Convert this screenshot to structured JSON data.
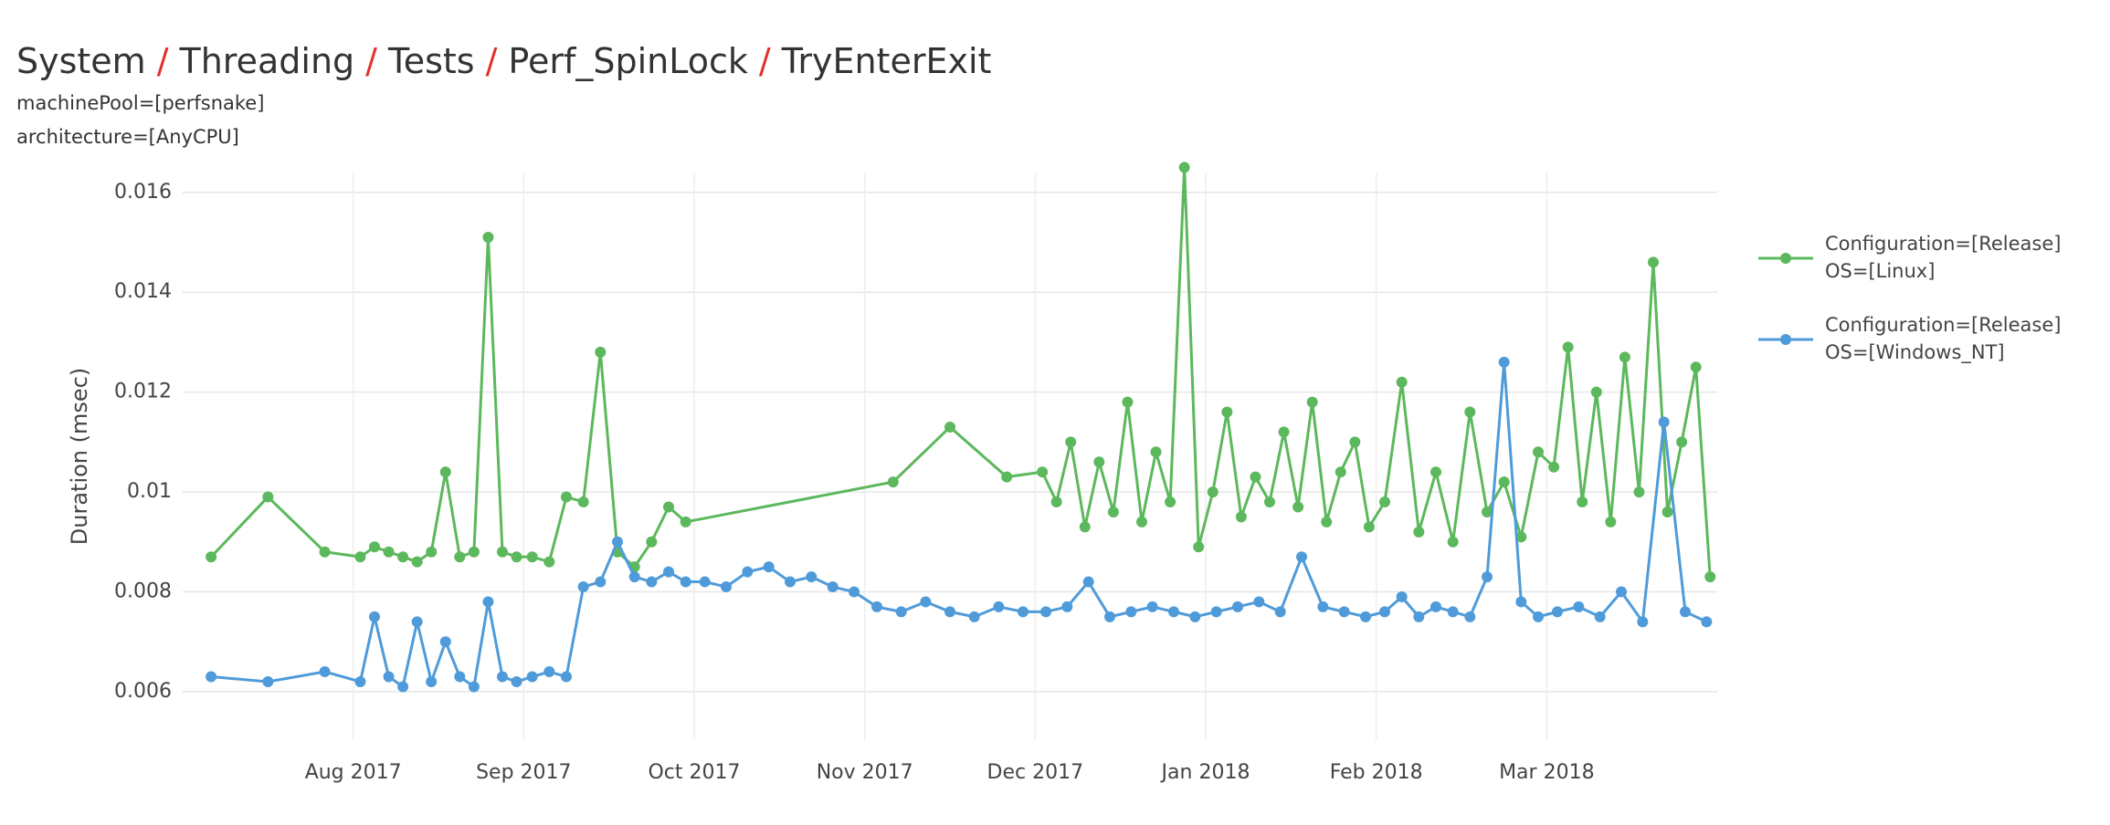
{
  "chart_data": {
    "type": "line",
    "title_parts": [
      "System",
      "Threading",
      "Tests",
      "Perf_SpinLock",
      "TryEnterExit"
    ],
    "title_separator": "/",
    "subtitle_lines": [
      "machinePool=[perfsnake]",
      "architecture=[AnyCPU]"
    ],
    "y_label": "Duration (msec)",
    "xlim": [
      "2017-07",
      "2018-04"
    ],
    "xticks": [
      {
        "value": "2017-08",
        "label": "Aug 2017"
      },
      {
        "value": "2017-09",
        "label": "Sep 2017"
      },
      {
        "value": "2017-10",
        "label": "Oct 2017"
      },
      {
        "value": "2017-11",
        "label": "Nov 2017"
      },
      {
        "value": "2017-12",
        "label": "Dec 2017"
      },
      {
        "value": "2018-01",
        "label": "Jan 2018"
      },
      {
        "value": "2018-02",
        "label": "Feb 2018"
      },
      {
        "value": "2018-03",
        "label": "Mar 2018"
      }
    ],
    "ylim": [
      0.00503,
      0.01638
    ],
    "yticks": [
      0.006,
      0.008,
      0.01,
      0.012,
      0.014,
      0.016
    ],
    "grid": true,
    "legend": "right",
    "series": [
      {
        "name": [
          "Configuration=[Release]",
          "OS=[Linux]"
        ],
        "color": "#5cb85c",
        "x": [
          "2017-07",
          "2017-07",
          "2017-07",
          "2017-08",
          "2017-08",
          "2017-08",
          "2017-08",
          "2017-08",
          "2017-08",
          "2017-08",
          "2017-08",
          "2017-08",
          "2017-08",
          "2017-08",
          "2017-08",
          "2017-09",
          "2017-09",
          "2017-09",
          "2017-09",
          "2017-09",
          "2017-09",
          "2017-09",
          "2017-09",
          "2017-09",
          "2017-09",
          "2017-11",
          "2017-11",
          "2017-11",
          "2017-12",
          "2017-12",
          "2017-12",
          "2017-12",
          "2017-12",
          "2017-12",
          "2017-12",
          "2017-12",
          "2017-12",
          "2017-12",
          "2017-12",
          "2017-12",
          "2018-01",
          "2018-01",
          "2018-01",
          "2018-01",
          "2018-01",
          "2018-01",
          "2018-01",
          "2018-01",
          "2018-01",
          "2018-01",
          "2018-01",
          "2018-01",
          "2018-02",
          "2018-02",
          "2018-02",
          "2018-02",
          "2018-02",
          "2018-02",
          "2018-02",
          "2018-02",
          "2018-02",
          "2018-02",
          "2018-03",
          "2018-03",
          "2018-03",
          "2018-03",
          "2018-03",
          "2018-03",
          "2018-03",
          "2018-03",
          "2018-03",
          "2018-03",
          "2018-03",
          "2018-03"
        ],
        "values": [
          0.0087,
          0.0099,
          0.0088,
          0.0087,
          0.0089,
          0.0088,
          0.0087,
          0.0086,
          0.0088,
          0.0104,
          0.0087,
          0.0088,
          0.0151,
          0.0088,
          0.0087,
          0.0087,
          0.0086,
          0.0099,
          0.0098,
          0.0128,
          0.0088,
          0.0085,
          0.009,
          0.0097,
          0.0094,
          0.0102,
          0.0113,
          0.0103,
          0.0104,
          0.0098,
          0.011,
          0.0093,
          0.0106,
          0.0096,
          0.0118,
          0.0094,
          0.0108,
          0.0098,
          0.0165,
          0.0089,
          0.01,
          0.0116,
          0.0095,
          0.0103,
          0.0098,
          0.0112,
          0.0097,
          0.0118,
          0.0094,
          0.0104,
          0.011,
          0.0093,
          0.0098,
          0.0122,
          0.0092,
          0.0104,
          0.009,
          0.0116,
          0.0096,
          0.0102,
          0.0091,
          0.0108,
          0.0105,
          0.0129,
          0.0098,
          0.012,
          0.0094,
          0.0127,
          0.01,
          0.0146,
          0.0096,
          0.011,
          0.0125,
          0.0083
        ]
      },
      {
        "name": [
          "Configuration=[Release]",
          "OS=[Windows_NT]"
        ],
        "color": "#4f9bd9",
        "x": [
          "2017-07",
          "2017-07",
          "2017-07",
          "2017-08",
          "2017-08",
          "2017-08",
          "2017-08",
          "2017-08",
          "2017-08",
          "2017-08",
          "2017-08",
          "2017-08",
          "2017-08",
          "2017-08",
          "2017-08",
          "2017-09",
          "2017-09",
          "2017-09",
          "2017-09",
          "2017-09",
          "2017-09",
          "2017-09",
          "2017-09",
          "2017-09",
          "2017-09",
          "2017-10",
          "2017-10",
          "2017-10",
          "2017-10",
          "2017-10",
          "2017-10",
          "2017-10",
          "2017-10",
          "2017-11",
          "2017-11",
          "2017-11",
          "2017-11",
          "2017-11",
          "2017-11",
          "2017-11",
          "2017-12",
          "2017-12",
          "2017-12",
          "2017-12",
          "2017-12",
          "2017-12",
          "2017-12",
          "2017-12",
          "2018-01",
          "2018-01",
          "2018-01",
          "2018-01",
          "2018-01",
          "2018-01",
          "2018-01",
          "2018-01",
          "2018-02",
          "2018-02",
          "2018-02",
          "2018-02",
          "2018-02",
          "2018-02",
          "2018-02",
          "2018-02",
          "2018-02",
          "2018-02",
          "2018-03",
          "2018-03",
          "2018-03",
          "2018-03",
          "2018-03",
          "2018-03",
          "2018-03",
          "2018-03"
        ],
        "values": [
          0.0063,
          0.0062,
          0.0064,
          0.0062,
          0.0075,
          0.0063,
          0.0061,
          0.0074,
          0.0062,
          0.007,
          0.0063,
          0.0061,
          0.0078,
          0.0063,
          0.0062,
          0.0063,
          0.0064,
          0.0063,
          0.0081,
          0.0082,
          0.009,
          0.0083,
          0.0082,
          0.0084,
          0.0082,
          0.0082,
          0.0081,
          0.0084,
          0.0085,
          0.0082,
          0.0083,
          0.0081,
          0.008,
          0.0077,
          0.0076,
          0.0078,
          0.0076,
          0.0075,
          0.0077,
          0.0076,
          0.0076,
          0.0077,
          0.0082,
          0.0075,
          0.0076,
          0.0077,
          0.0076,
          0.0075,
          0.0076,
          0.0077,
          0.0078,
          0.0076,
          0.0087,
          0.0077,
          0.0076,
          0.0075,
          0.0076,
          0.0079,
          0.0075,
          0.0077,
          0.0076,
          0.0075,
          0.0083,
          0.0126,
          0.0078,
          0.0075,
          0.0076,
          0.0077,
          0.0075,
          0.008,
          0.0074,
          0.0114,
          0.0076,
          0.0074
        ]
      }
    ]
  }
}
